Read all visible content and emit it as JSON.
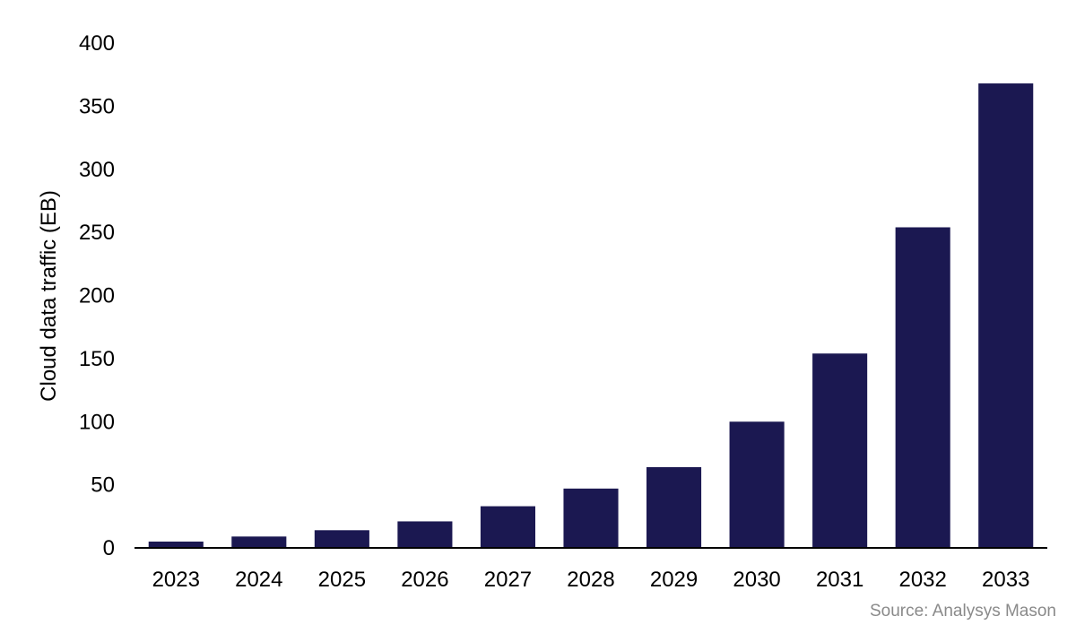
{
  "chart_data": {
    "type": "bar",
    "categories": [
      "2023",
      "2024",
      "2025",
      "2026",
      "2027",
      "2028",
      "2029",
      "2030",
      "2031",
      "2032",
      "2033"
    ],
    "values": [
      5,
      9,
      14,
      21,
      33,
      47,
      64,
      100,
      154,
      254,
      368
    ],
    "ylabel": "Cloud data traffic (EB)",
    "xlabel": "",
    "ylim": [
      0,
      400
    ],
    "yticks": [
      0,
      50,
      100,
      150,
      200,
      250,
      300,
      350,
      400
    ],
    "grid": false,
    "legend": "none",
    "bar_color": "#1b1851",
    "axis_color": "#000000"
  },
  "source": "Source: Analysys Mason"
}
